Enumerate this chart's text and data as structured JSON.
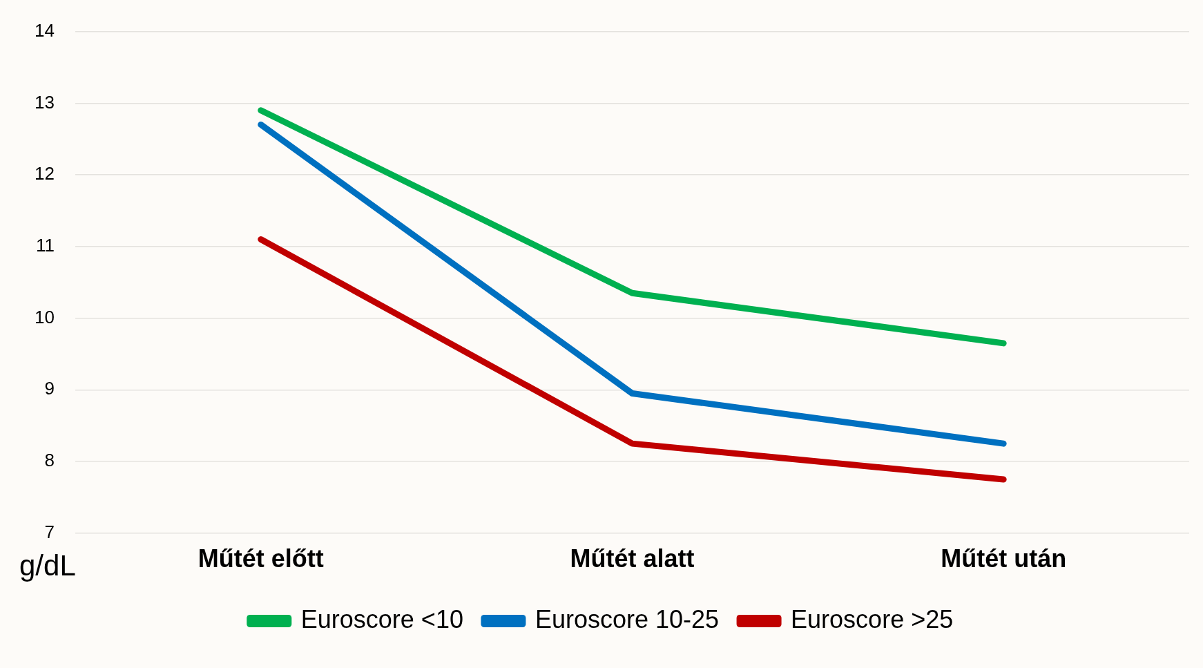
{
  "chart_data": {
    "type": "line",
    "ylabel": "g/dL",
    "categories": [
      "Műtét előtt",
      "Műtét alatt",
      "Műtét után"
    ],
    "series": [
      {
        "name": "Euroscore <10",
        "color": "#00b050",
        "values": [
          12.9,
          10.35,
          9.65
        ]
      },
      {
        "name": "Euroscore 10-25",
        "color": "#0070c0",
        "values": [
          12.7,
          8.95,
          8.25
        ]
      },
      {
        "name": "Euroscore >25",
        "color": "#c00000",
        "values": [
          11.1,
          8.25,
          7.75
        ]
      }
    ],
    "ylim": [
      7,
      14
    ],
    "yticks": [
      7,
      8,
      9,
      10,
      11,
      12,
      13,
      14
    ],
    "grid": "y",
    "legend": "bottom",
    "marker": "none",
    "line_style": "solid"
  }
}
